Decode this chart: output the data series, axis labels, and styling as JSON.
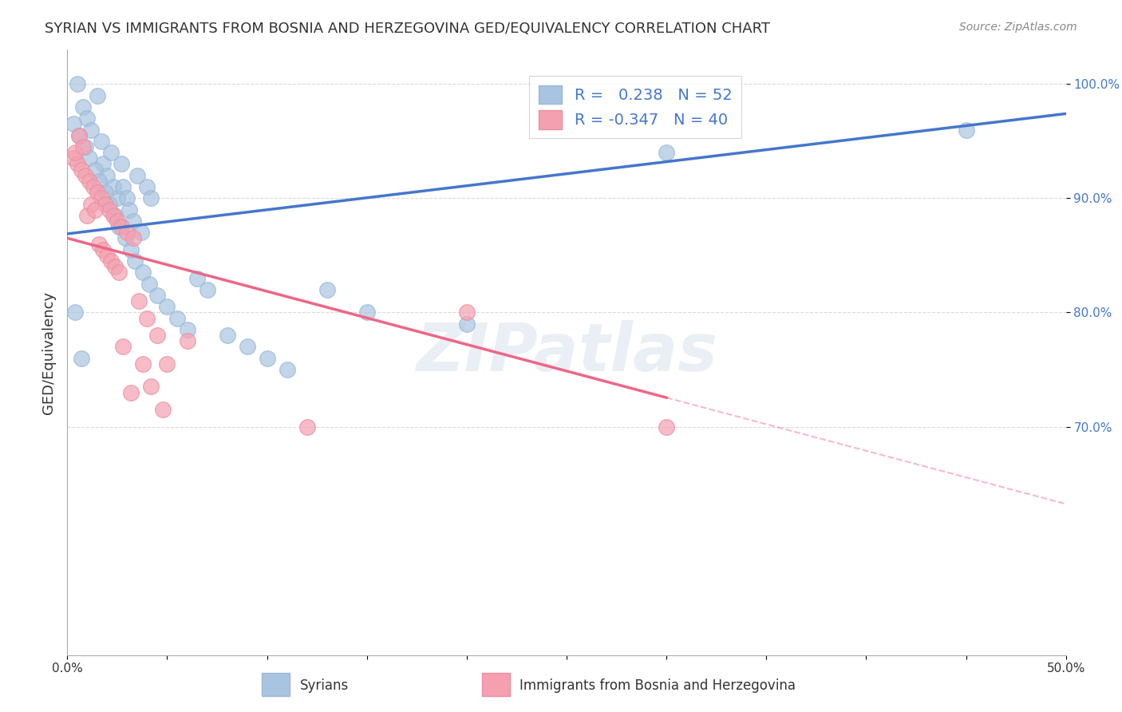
{
  "title": "SYRIAN VS IMMIGRANTS FROM BOSNIA AND HERZEGOVINA GED/EQUIVALENCY CORRELATION CHART",
  "source": "Source: ZipAtlas.com",
  "ylabel": "GED/Equivalency",
  "xlim": [
    0.0,
    0.5
  ],
  "ylim": [
    0.5,
    1.03
  ],
  "yticks": [
    0.7,
    0.8,
    0.9,
    1.0
  ],
  "ytick_labels": [
    "70.0%",
    "80.0%",
    "90.0%",
    "100.0%"
  ],
  "blue_color": "#a8c4e0",
  "pink_color": "#f4a0b0",
  "blue_line_color": "#4477cc",
  "pink_line_color": "#ee6688",
  "blue_r": 0.238,
  "blue_n": 52,
  "pink_r": -0.347,
  "pink_n": 40,
  "legend_label_blue": "Syrians",
  "legend_label_pink": "Immigrants from Bosnia and Herzegovina",
  "watermark": "ZIPatlas",
  "blue_scatter_x": [
    0.005,
    0.008,
    0.01,
    0.012,
    0.015,
    0.017,
    0.018,
    0.02,
    0.022,
    0.023,
    0.025,
    0.027,
    0.028,
    0.03,
    0.031,
    0.033,
    0.035,
    0.037,
    0.04,
    0.042,
    0.003,
    0.006,
    0.009,
    0.011,
    0.014,
    0.016,
    0.019,
    0.021,
    0.024,
    0.026,
    0.029,
    0.032,
    0.034,
    0.038,
    0.041,
    0.045,
    0.05,
    0.055,
    0.06,
    0.065,
    0.07,
    0.08,
    0.09,
    0.1,
    0.11,
    0.13,
    0.15,
    0.2,
    0.3,
    0.45,
    0.004,
    0.007
  ],
  "blue_scatter_y": [
    1.0,
    0.98,
    0.97,
    0.96,
    0.99,
    0.95,
    0.93,
    0.92,
    0.94,
    0.91,
    0.9,
    0.93,
    0.91,
    0.9,
    0.89,
    0.88,
    0.92,
    0.87,
    0.91,
    0.9,
    0.965,
    0.955,
    0.945,
    0.935,
    0.925,
    0.915,
    0.905,
    0.895,
    0.885,
    0.875,
    0.865,
    0.855,
    0.845,
    0.835,
    0.825,
    0.815,
    0.805,
    0.795,
    0.785,
    0.83,
    0.82,
    0.78,
    0.77,
    0.76,
    0.75,
    0.82,
    0.8,
    0.79,
    0.94,
    0.96,
    0.8,
    0.76
  ],
  "pink_scatter_x": [
    0.003,
    0.005,
    0.007,
    0.009,
    0.011,
    0.013,
    0.015,
    0.017,
    0.019,
    0.021,
    0.023,
    0.025,
    0.027,
    0.03,
    0.033,
    0.036,
    0.04,
    0.045,
    0.05,
    0.06,
    0.004,
    0.006,
    0.008,
    0.01,
    0.012,
    0.014,
    0.016,
    0.018,
    0.02,
    0.022,
    0.024,
    0.026,
    0.028,
    0.032,
    0.038,
    0.042,
    0.048,
    0.12,
    0.3,
    0.2
  ],
  "pink_scatter_y": [
    0.935,
    0.93,
    0.925,
    0.92,
    0.915,
    0.91,
    0.905,
    0.9,
    0.895,
    0.89,
    0.885,
    0.88,
    0.875,
    0.87,
    0.865,
    0.81,
    0.795,
    0.78,
    0.755,
    0.775,
    0.94,
    0.955,
    0.945,
    0.885,
    0.895,
    0.89,
    0.86,
    0.855,
    0.85,
    0.845,
    0.84,
    0.835,
    0.77,
    0.73,
    0.755,
    0.735,
    0.715,
    0.7,
    0.7,
    0.8
  ]
}
